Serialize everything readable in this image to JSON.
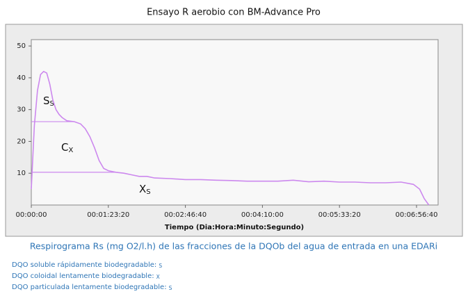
{
  "chart_data": {
    "type": "line",
    "title": "Ensayo R aerobio con BM-Advance Pro",
    "x_label": "Tiempo (Dia:Hora:Minuto:Segundo)",
    "color": "#cc88ee",
    "x": [
      0,
      200,
      400,
      600,
      800,
      1000,
      1200,
      1400,
      1600,
      1800,
      2000,
      2300,
      2800,
      3200,
      3500,
      3800,
      4100,
      4400,
      4700,
      5000,
      5500,
      6000,
      6500,
      7000,
      7500,
      8000,
      9000,
      10000,
      11000,
      12000,
      13000,
      14000,
      15000,
      16000,
      17000,
      18000,
      19000,
      20000,
      21000,
      22000,
      23000,
      24000,
      24800,
      25200,
      25500,
      25800
    ],
    "values": [
      5,
      25,
      36,
      41,
      42,
      41.5,
      38,
      33,
      30,
      28.5,
      27.5,
      26.5,
      26.2,
      25.5,
      24,
      21.5,
      18,
      14,
      11.5,
      10.8,
      10.3,
      10,
      9.5,
      9,
      9,
      8.5,
      8.3,
      8,
      8,
      7.8,
      7.7,
      7.5,
      7.5,
      7.5,
      7.8,
      7.3,
      7.5,
      7.2,
      7.2,
      7,
      7,
      7.2,
      6.5,
      5,
      2,
      0
    ],
    "xlim": [
      0,
      26400
    ],
    "ylim": [
      0,
      52
    ],
    "xticks": [
      {
        "value": 0,
        "label": "00:00:00"
      },
      {
        "value": 5000,
        "label": "00:01:23:20"
      },
      {
        "value": 10000,
        "label": "00:02:46:40"
      },
      {
        "value": 15000,
        "label": "00:04:10:00"
      },
      {
        "value": 20000,
        "label": "00:05:33:20"
      },
      {
        "value": 25000,
        "label": "00:06:56:40"
      }
    ],
    "yticks": [
      10,
      20,
      30,
      40,
      50
    ],
    "reference_lines": [
      {
        "y": 26.2,
        "x_end": 2800
      },
      {
        "y": 10.3,
        "x_end": 5500
      }
    ],
    "annotations": [
      {
        "text": "S",
        "sub": "S"
      },
      {
        "text": "C",
        "sub": "X"
      },
      {
        "text": "X",
        "sub": "S"
      }
    ]
  },
  "caption": "Respirograma Rs (mg O2/l.h) de las fracciones de la DQOb del agua de entrada en una EDARi",
  "notes": [
    {
      "text": "DQO soluble rápidamente biodegradable:",
      "sub": "S"
    },
    {
      "text": "DQO coloidal lentamente biodegradable:",
      "sub": "X"
    },
    {
      "text": "DQO particulada lentamente biodegradable:",
      "sub": "S"
    }
  ]
}
